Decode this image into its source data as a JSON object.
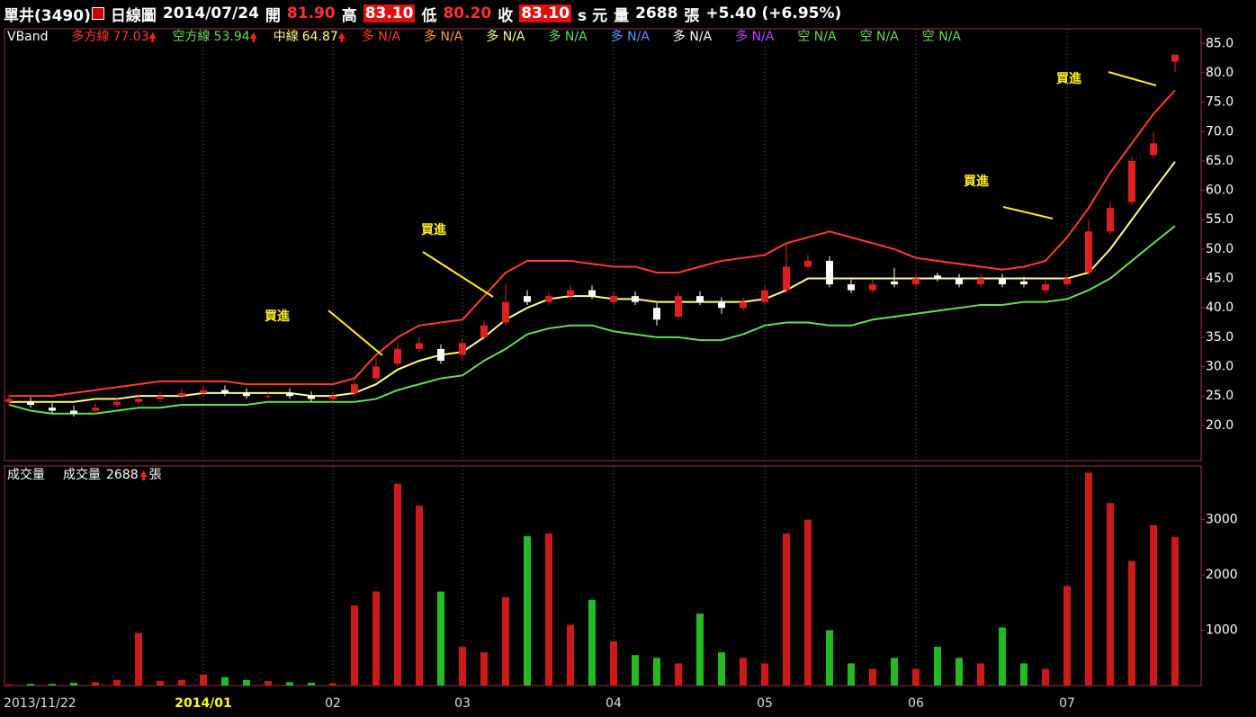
{
  "header": {
    "stock": "單井(3490)",
    "chart_kind": "日線圖",
    "date": "2014/07/24",
    "open_label": "開",
    "open": "81.90",
    "high_label": "高",
    "high": "83.10",
    "low_label": "低",
    "low": "80.20",
    "close_label": "收",
    "close": "83.10",
    "unit": "s 元",
    "volume_label": "量",
    "volume": "2688",
    "volume_unit": "張",
    "change": "+5.40 (+6.95%)"
  },
  "chart_data": {
    "type": "candlestick",
    "indicator": "VBand",
    "categories": [
      "2013/11/22",
      null,
      null,
      null,
      null,
      null,
      null,
      null,
      null,
      "2014/01",
      null,
      null,
      null,
      null,
      null,
      "02",
      null,
      null,
      null,
      null,
      null,
      "03",
      null,
      null,
      null,
      null,
      null,
      null,
      "04",
      null,
      null,
      null,
      null,
      null,
      null,
      "05",
      null,
      null,
      null,
      null,
      null,
      null,
      "06",
      null,
      null,
      null,
      null,
      null,
      null,
      "07",
      null,
      null,
      null,
      null,
      null
    ],
    "open": [
      24,
      24,
      23,
      22.5,
      22.5,
      23.5,
      24,
      24.5,
      25,
      25.5,
      26,
      25.5,
      25,
      25.5,
      25,
      24.5,
      25.5,
      28,
      30.5,
      33,
      33,
      32,
      35,
      37.5,
      42,
      41,
      42,
      43,
      41,
      42,
      40,
      38.5,
      42,
      41,
      40,
      41,
      43,
      47,
      48,
      44,
      43,
      44.5,
      44,
      45.5,
      45,
      44,
      45,
      44.5,
      43,
      44,
      46,
      53,
      58,
      66,
      81.9
    ],
    "high": [
      25.3,
      24.8,
      23.8,
      23.3,
      23.8,
      24.8,
      25.3,
      25.8,
      26.3,
      26.8,
      26.8,
      26.3,
      25.8,
      26.3,
      25.8,
      25.8,
      27.8,
      31.5,
      34,
      35,
      33.8,
      34.8,
      37.8,
      44,
      43,
      42.8,
      43.8,
      43.8,
      42.8,
      42.8,
      40.8,
      42.8,
      42.8,
      41.8,
      41.8,
      43.8,
      51,
      49,
      48.8,
      44.8,
      44.8,
      46.8,
      45.8,
      46,
      45.8,
      45.8,
      45.8,
      45.3,
      44.8,
      45.8,
      55,
      58,
      65.8,
      70,
      83.1
    ],
    "low": [
      23.2,
      23,
      22,
      21.5,
      22,
      23,
      23.5,
      24,
      24.5,
      25,
      25,
      24.5,
      24.5,
      24.5,
      24,
      24,
      25,
      27.5,
      30,
      32.5,
      30.5,
      31,
      34.5,
      37,
      40.5,
      40.5,
      41.5,
      41.5,
      40.5,
      40.5,
      37,
      38,
      40.5,
      39,
      39.5,
      40.5,
      42.5,
      46.5,
      43.5,
      42.5,
      42.5,
      43.5,
      43.5,
      44.5,
      43.5,
      43.5,
      43.5,
      43.5,
      42.5,
      43.5,
      45.5,
      52.5,
      57.5,
      65.5,
      80.2
    ],
    "close": [
      24.5,
      23.5,
      22.5,
      22,
      23,
      24,
      24.5,
      25,
      25.5,
      26,
      25.5,
      25,
      25,
      25,
      24.5,
      25,
      27,
      30,
      33,
      34,
      31,
      34,
      37,
      41,
      41,
      42,
      43,
      42,
      42,
      41,
      38,
      42,
      41,
      40,
      41,
      43,
      47,
      48,
      44,
      43,
      44,
      44,
      45,
      45,
      44,
      45,
      44,
      44,
      44,
      45,
      53,
      57,
      65,
      68,
      83.1
    ],
    "up_color": "#e02020",
    "down_color": "#ffffff",
    "series": [
      {
        "name": "多方線",
        "color": "#ff3b30",
        "values": [
          25,
          25,
          25,
          25.5,
          26,
          26.5,
          27,
          27.5,
          27.5,
          27.5,
          27.5,
          27,
          27,
          27,
          27,
          27,
          28,
          32,
          35,
          37,
          37.5,
          38,
          42,
          46,
          48,
          48,
          48,
          47.5,
          47,
          47,
          46,
          46,
          47,
          48,
          48.5,
          49,
          51,
          52,
          53,
          52,
          51,
          50,
          48.5,
          48,
          47.5,
          47,
          46.5,
          47,
          48,
          52,
          57,
          63,
          68,
          73,
          77.03
        ]
      },
      {
        "name": "空方線",
        "color": "#66dd55",
        "values": [
          23.5,
          22.5,
          22,
          22,
          22,
          22.5,
          23,
          23,
          23.5,
          23.5,
          23.5,
          23.5,
          24,
          24,
          24,
          24,
          24,
          24.5,
          26,
          27,
          28,
          28.5,
          31,
          33,
          35.5,
          36.5,
          37,
          37,
          36,
          35.5,
          35,
          35,
          34.5,
          34.5,
          35.5,
          37,
          37.5,
          37.5,
          37,
          37,
          38,
          38.5,
          39,
          39.5,
          40,
          40.5,
          40.5,
          41,
          41,
          41.5,
          43,
          45,
          48,
          51,
          53.94
        ]
      },
      {
        "name": "中線",
        "color": "#ffff80",
        "values": [
          24,
          24,
          24,
          24,
          24.5,
          24.5,
          25,
          25,
          25,
          25.5,
          25.5,
          25.5,
          25.5,
          25.5,
          25,
          25,
          25.5,
          27,
          29.5,
          31,
          32,
          32.5,
          35,
          38,
          40,
          41.5,
          42,
          42,
          41.5,
          41.5,
          41,
          41,
          41,
          41,
          41,
          41.5,
          43,
          45,
          45,
          45,
          45,
          45,
          45,
          45,
          45,
          45,
          45,
          45,
          45,
          45,
          46,
          50,
          55,
          60,
          64.87
        ]
      }
    ],
    "legend_extras": [
      {
        "text": "多 N/A",
        "color": "#ff3b30"
      },
      {
        "text": "多 N/A",
        "color": "#ff9933"
      },
      {
        "text": "多 N/A",
        "color": "#ffff80"
      },
      {
        "text": "多 N/A",
        "color": "#66dd55"
      },
      {
        "text": "多 N/A",
        "color": "#5599ff"
      },
      {
        "text": "多 N/A",
        "color": "#ffffff"
      },
      {
        "text": "多 N/A",
        "color": "#bb44ff"
      },
      {
        "text": "空 N/A",
        "color": "#66dd55"
      },
      {
        "text": "空 N/A",
        "color": "#66dd55"
      },
      {
        "text": "空 N/A",
        "color": "#66dd55"
      }
    ],
    "ylim": [
      14,
      87.5
    ],
    "yticks": [
      {
        "value": 20,
        "label": "20.0"
      },
      {
        "value": 25,
        "label": "25.0"
      },
      {
        "value": 30,
        "label": "30.0"
      },
      {
        "value": 35,
        "label": "35.0"
      },
      {
        "value": 40,
        "label": "40.0"
      },
      {
        "value": 45,
        "label": "45.0"
      },
      {
        "value": 50,
        "label": "50.0"
      },
      {
        "value": 55,
        "label": "55.0"
      },
      {
        "value": 60,
        "label": "60.0"
      },
      {
        "value": 65,
        "label": "65.0"
      },
      {
        "value": 70,
        "label": "70.0"
      },
      {
        "value": 75,
        "label": "75.0"
      },
      {
        "value": 80,
        "label": "80.0"
      },
      {
        "value": 85,
        "label": "85.0"
      }
    ],
    "grid": true,
    "annotations": [
      "買進",
      "買進",
      "買進",
      "買進"
    ],
    "volume": {
      "title": "成交量",
      "name": "成交量",
      "up_color": "#cc1a1a",
      "down_color": "#22bb22",
      "values": [
        20,
        30,
        30,
        50,
        60,
        100,
        950,
        80,
        100,
        200,
        150,
        100,
        80,
        60,
        50,
        40,
        1450,
        1700,
        3650,
        3250,
        1700,
        700,
        600,
        1600,
        2700,
        2750,
        1100,
        1550,
        800,
        550,
        500,
        400,
        1300,
        600,
        500,
        400,
        2750,
        3000,
        1000,
        400,
        300,
        500,
        300,
        700,
        500,
        400,
        1050,
        400,
        300,
        1800,
        3850,
        3300,
        2250,
        2900,
        2688
      ],
      "ylim": [
        0,
        3970
      ],
      "yticks": [
        1000,
        2000,
        3000
      ]
    }
  }
}
